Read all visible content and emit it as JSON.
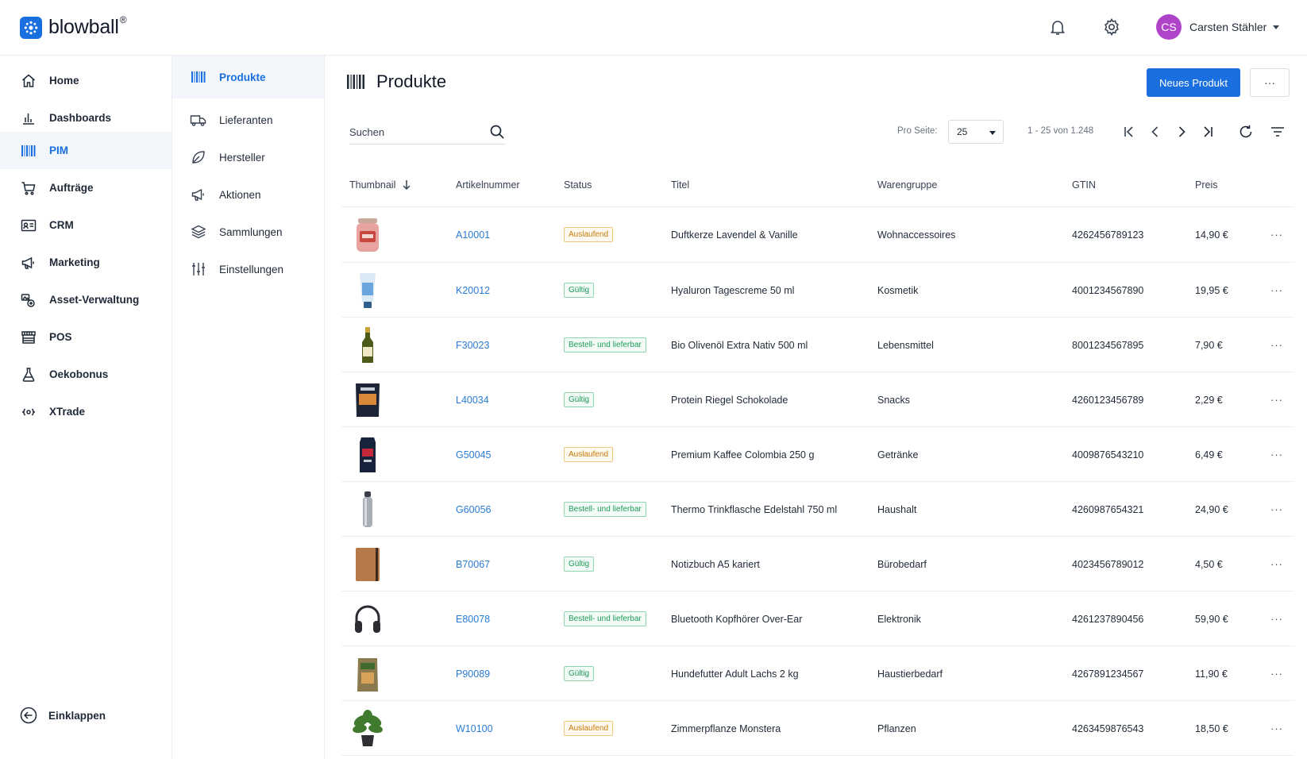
{
  "app": {
    "brand": "blowball",
    "brand_mark": "®",
    "user": {
      "initials": "CS",
      "name": "Carsten Stähler"
    }
  },
  "sidebar": {
    "items": [
      {
        "label": "Home",
        "icon": "home-icon"
      },
      {
        "label": "Dashboards",
        "icon": "bar-chart-icon"
      },
      {
        "label": "PIM",
        "icon": "barcode-icon",
        "active": true
      },
      {
        "label": "Aufträge",
        "icon": "cart-icon"
      },
      {
        "label": "CRM",
        "icon": "contact-card-icon"
      },
      {
        "label": "Marketing",
        "icon": "megaphone-icon"
      },
      {
        "label": "Asset-Verwaltung",
        "icon": "assets-icon"
      },
      {
        "label": "POS",
        "icon": "store-icon"
      },
      {
        "label": "Oekobonus",
        "icon": "flask-icon"
      },
      {
        "label": "XTrade",
        "icon": "signal-icon"
      }
    ],
    "collapse_label": "Einklappen"
  },
  "subnav": {
    "items": [
      {
        "label": "Produkte",
        "icon": "barcode-icon",
        "active": true
      },
      {
        "label": "Lieferanten",
        "icon": "truck-icon"
      },
      {
        "label": "Hersteller",
        "icon": "leaf-icon"
      },
      {
        "label": "Aktionen",
        "icon": "megaphone-icon"
      },
      {
        "label": "Sammlungen",
        "icon": "layers-icon"
      },
      {
        "label": "Einstellungen",
        "icon": "sliders-icon"
      }
    ]
  },
  "main": {
    "title": "Produkte",
    "new_button": "Neues Produkt",
    "more_button": "···",
    "search": {
      "placeholder": "Suchen"
    },
    "pagination": {
      "per_page_label": "Pro Seite:",
      "per_page": "25",
      "range": "1 - 25 von 1.248"
    }
  },
  "table": {
    "columns": [
      "Thumbnail",
      "Artikelnummer",
      "Status",
      "Titel",
      "Warengruppe",
      "GTIN",
      "Preis"
    ],
    "rows": [
      {
        "sku": "A10001",
        "status": "Auslaufend",
        "status_type": "warn",
        "title": "Duftkerze Lavendel & Vanille",
        "group": "Wohnaccessoires",
        "gtin": "4262456789123",
        "price": "14,90 €",
        "thumb": "candle"
      },
      {
        "sku": "K20012",
        "status": "Gültig",
        "status_type": "ok",
        "title": "Hyaluron Tagescreme 50 ml",
        "group": "Kosmetik",
        "gtin": "4001234567890",
        "price": "19,95 €",
        "thumb": "tube"
      },
      {
        "sku": "F30023",
        "status": "Bestell- und lieferbar",
        "status_type": "ok",
        "title": "Bio Olivenöl Extra Nativ 500 ml",
        "group": "Lebensmittel",
        "gtin": "8001234567895",
        "price": "7,90 €",
        "thumb": "bottle"
      },
      {
        "sku": "L40034",
        "status": "Gültig",
        "status_type": "ok",
        "title": "Protein Riegel Schokolade",
        "group": "Snacks",
        "gtin": "4260123456789",
        "price": "2,29 €",
        "thumb": "bag-dark"
      },
      {
        "sku": "G50045",
        "status": "Auslaufend",
        "status_type": "warn",
        "title": "Premium Kaffee Colombia 250 g",
        "group": "Getränke",
        "gtin": "4009876543210",
        "price": "6,49 €",
        "thumb": "coffee"
      },
      {
        "sku": "G60056",
        "status": "Bestell- und lieferbar",
        "status_type": "ok",
        "title": "Thermo Trinkflasche Edelstahl 750 ml",
        "group": "Haushalt",
        "gtin": "4260987654321",
        "price": "24,90 €",
        "thumb": "flask"
      },
      {
        "sku": "B70067",
        "status": "Gültig",
        "status_type": "ok",
        "title": "Notizbuch A5 kariert",
        "group": "Bürobedarf",
        "gtin": "4023456789012",
        "price": "4,50 €",
        "thumb": "notebook"
      },
      {
        "sku": "E80078",
        "status": "Bestell- und lieferbar",
        "status_type": "ok",
        "title": "Bluetooth Kopfhörer Over-Ear",
        "group": "Elektronik",
        "gtin": "4261237890456",
        "price": "59,90 €",
        "thumb": "headphones"
      },
      {
        "sku": "P90089",
        "status": "Gültig",
        "status_type": "ok",
        "title": "Hundefutter Adult Lachs 2 kg",
        "group": "Haustierbedarf",
        "gtin": "4267891234567",
        "price": "11,90 €",
        "thumb": "petfood"
      },
      {
        "sku": "W10100",
        "status": "Auslaufend",
        "status_type": "warn",
        "title": "Zimmerpflanze Monstera",
        "group": "Pflanzen",
        "gtin": "4263459876543",
        "price": "18,50 €",
        "thumb": "plant"
      }
    ],
    "row_action": "···"
  },
  "colors": {
    "accent": "#1a6fe0",
    "avatar": "#b044c8",
    "warn": "#c77a0a",
    "ok": "#1e9a5a"
  }
}
